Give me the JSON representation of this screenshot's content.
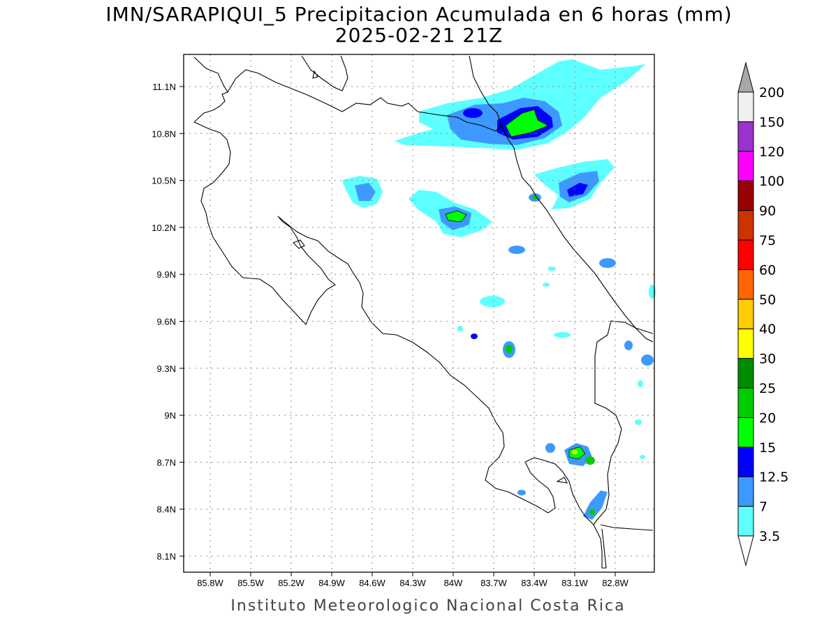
{
  "title": {
    "line1": "IMN/SARAPIQUI_5 Precipitacion Acumulada en 6 horas (mm)",
    "line2": "2025-02-21 21Z"
  },
  "footer": "Instituto Meteorologico Nacional Costa Rica",
  "axes": {
    "lon_ticks": [
      "85.8W",
      "85.5W",
      "85.2W",
      "84.9W",
      "84.6W",
      "84.3W",
      "84W",
      "83.7W",
      "83.4W",
      "83.1W",
      "82.8W"
    ],
    "lat_ticks": [
      "11.1N",
      "10.8N",
      "10.5N",
      "10.2N",
      "9.9N",
      "9.6N",
      "9.3N",
      "9N",
      "8.7N",
      "8.4N",
      "8.1N"
    ]
  },
  "colorbar": {
    "labels": [
      "3.5",
      "7",
      "12.5",
      "15",
      "20",
      "25",
      "30",
      "40",
      "50",
      "60",
      "75",
      "90",
      "100",
      "120",
      "150",
      "200"
    ],
    "colors": [
      "#ffffff",
      "#5effff",
      "#3d99ff",
      "#0000ff",
      "#00ff00",
      "#00cc00",
      "#008c00",
      "#ffff00",
      "#ffcc00",
      "#ff6600",
      "#ff0000",
      "#cc3300",
      "#990000",
      "#ff00ff",
      "#9933cc",
      "#f0f0f0",
      "#a8a8a8"
    ]
  }
}
